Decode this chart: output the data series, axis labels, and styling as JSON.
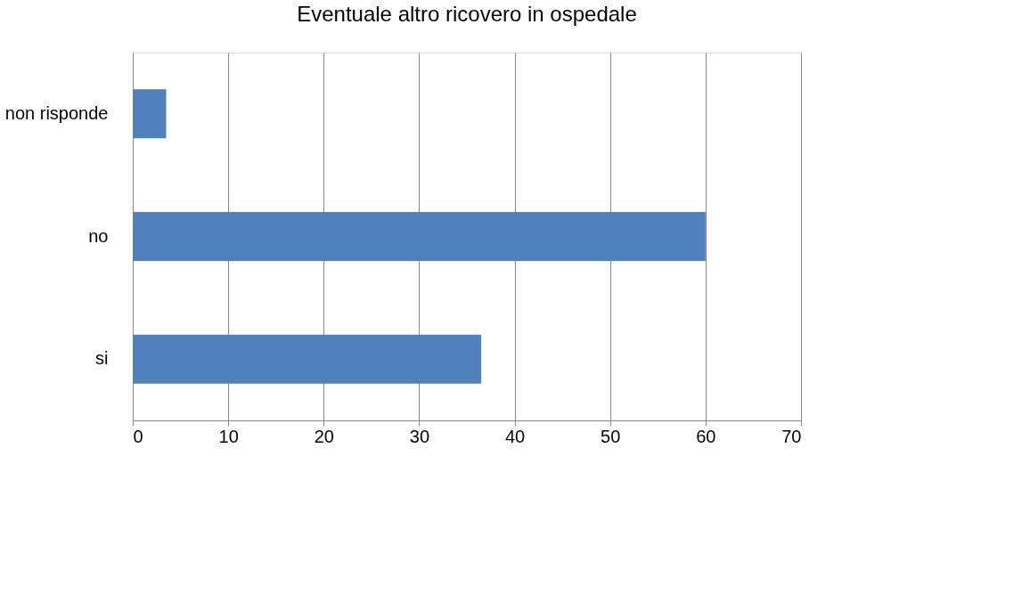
{
  "chart_data": {
    "type": "bar",
    "orientation": "horizontal",
    "title": "Eventuale altro ricovero in ospedale",
    "categories": [
      "non risponde",
      "no",
      "si"
    ],
    "values": [
      3.5,
      60,
      36.5
    ],
    "color": "#4f81bd",
    "xlim": [
      0,
      70
    ],
    "xticks": [
      0,
      10,
      20,
      30,
      40,
      50,
      60,
      70
    ],
    "grid": "x"
  }
}
